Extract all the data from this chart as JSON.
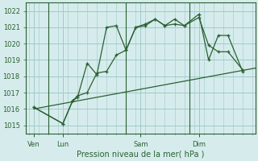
{
  "background_color": "#d6ecec",
  "grid_color": "#a0c8c8",
  "line_color": "#2a6032",
  "title": "Pression niveau de la mer( hPa )",
  "ylim": [
    1014.5,
    1022.5
  ],
  "yticks": [
    1015,
    1016,
    1017,
    1018,
    1019,
    1020,
    1021,
    1022
  ],
  "xlim": [
    -0.3,
    23.3
  ],
  "day_labels": [
    "Ven",
    "Lun",
    "Sam",
    "Dim"
  ],
  "day_positions": [
    0.5,
    3.5,
    11.5,
    17.5
  ],
  "vline_positions": [
    2.0,
    10.0,
    16.5
  ],
  "line1_x": [
    0.5,
    3.5,
    4.5,
    5.0,
    6.0,
    7.0,
    8.0,
    9.0,
    10.0,
    11.0,
    12.0,
    13.0,
    14.0,
    15.0,
    16.0,
    17.5,
    18.5,
    19.5,
    20.5,
    22.0
  ],
  "line1_y": [
    1016.1,
    1015.1,
    1016.5,
    1016.7,
    1018.8,
    1018.1,
    1021.0,
    1021.1,
    1019.6,
    1021.0,
    1021.1,
    1021.5,
    1021.1,
    1021.5,
    1021.1,
    1021.8,
    1019.0,
    1020.5,
    1020.5,
    1018.3
  ],
  "line2_x": [
    0.5,
    3.5,
    4.5,
    5.0,
    6.0,
    7.0,
    8.0,
    9.0,
    10.0,
    11.0,
    12.0,
    13.0,
    14.0,
    15.0,
    16.0,
    17.5,
    18.5,
    19.5,
    20.5,
    22.0
  ],
  "line2_y": [
    1016.1,
    1015.1,
    1016.5,
    1016.8,
    1017.0,
    1018.2,
    1018.3,
    1019.3,
    1019.6,
    1021.0,
    1021.2,
    1021.5,
    1021.1,
    1021.2,
    1021.1,
    1021.6,
    1019.9,
    1019.5,
    1019.5,
    1018.4
  ],
  "line3_x": [
    0.5,
    23.3
  ],
  "line3_y": [
    1016.0,
    1018.5
  ]
}
